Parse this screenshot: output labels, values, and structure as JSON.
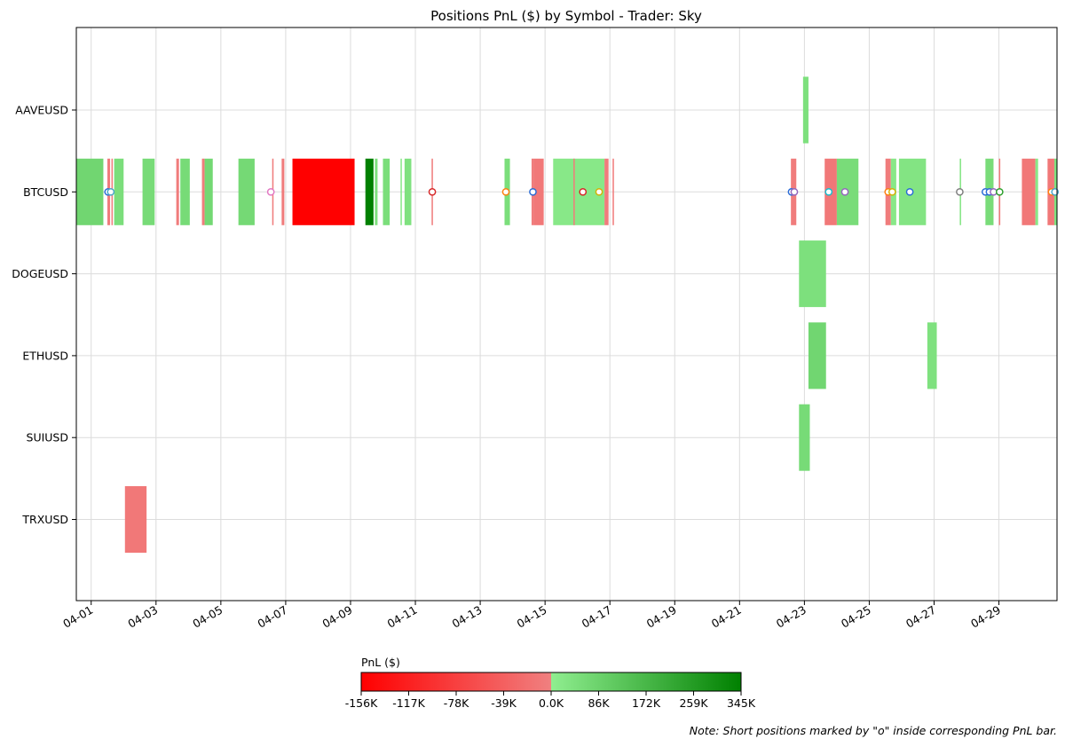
{
  "chart_data": {
    "type": "timeline",
    "title": "Positions PnL ($) by Symbol - Trader: Sky",
    "note": "Note: Short positions marked by \"o\" inside corresponding PnL bar.",
    "x_domain": [
      "2025-03-31T13:00",
      "2025-04-30T19:00"
    ],
    "x_ticks": [
      "04-01",
      "04-03",
      "04-05",
      "04-07",
      "04-09",
      "04-11",
      "04-13",
      "04-15",
      "04-17",
      "04-19",
      "04-21",
      "04-23",
      "04-25",
      "04-27",
      "04-29"
    ],
    "grid": true,
    "symbols": [
      "AAVEUSD",
      "BTCUSD",
      "DOGEUSD",
      "ETHUSD",
      "SUIUSD",
      "TRXUSD"
    ],
    "colorbar": {
      "label": "PnL ($)",
      "ticks": [
        "-156K",
        "-117K",
        "-78K",
        "-39K",
        "0.0K",
        "86K",
        "172K",
        "259K",
        "345K"
      ],
      "min": -156,
      "max": 345,
      "neg_colors": [
        "#ff0000",
        "#f08080"
      ],
      "pos_colors": [
        "#90ee90",
        "#008000"
      ]
    },
    "positions": [
      {
        "symbol": "AAVEUSD",
        "start": "2025-04-22T23:00",
        "end": "2025-04-23T03:00",
        "pnl_k": 45
      },
      {
        "symbol": "BTCUSD",
        "start": "2025-03-31T13:00",
        "end": "2025-04-01T09:00",
        "pnl_k": 75
      },
      {
        "symbol": "BTCUSD",
        "start": "2025-04-01T12:00",
        "end": "2025-04-01T14:00",
        "pnl_k": -5
      },
      {
        "symbol": "BTCUSD",
        "start": "2025-04-01T15:00",
        "end": "2025-04-01T16:00",
        "pnl_k": -5
      },
      {
        "symbol": "BTCUSD",
        "start": "2025-04-01T17:00",
        "end": "2025-04-02T00:00",
        "pnl_k": 50
      },
      {
        "symbol": "BTCUSD",
        "start": "2025-04-02T14:00",
        "end": "2025-04-02T23:00",
        "pnl_k": 60
      },
      {
        "symbol": "BTCUSD",
        "start": "2025-04-03T15:00",
        "end": "2025-04-03T17:00",
        "pnl_k": -5
      },
      {
        "symbol": "BTCUSD",
        "start": "2025-04-03T18:00",
        "end": "2025-04-04T01:00",
        "pnl_k": 60
      },
      {
        "symbol": "BTCUSD",
        "start": "2025-04-04T10:00",
        "end": "2025-04-04T12:00",
        "pnl_k": -5
      },
      {
        "symbol": "BTCUSD",
        "start": "2025-04-04T12:00",
        "end": "2025-04-04T18:00",
        "pnl_k": 70
      },
      {
        "symbol": "BTCUSD",
        "start": "2025-04-05T13:00",
        "end": "2025-04-06T01:00",
        "pnl_k": 65
      },
      {
        "symbol": "BTCUSD",
        "start": "2025-04-06T14:00",
        "end": "2025-04-06T15:00",
        "pnl_k": -5
      },
      {
        "symbol": "BTCUSD",
        "start": "2025-04-06T21:00",
        "end": "2025-04-06T23:00",
        "pnl_k": -5
      },
      {
        "symbol": "BTCUSD",
        "start": "2025-04-07T05:00",
        "end": "2025-04-09T03:00",
        "pnl_k": -156
      },
      {
        "symbol": "BTCUSD",
        "start": "2025-04-09T11:00",
        "end": "2025-04-09T17:00",
        "pnl_k": 345
      },
      {
        "symbol": "BTCUSD",
        "start": "2025-04-09T18:00",
        "end": "2025-04-09T20:00",
        "pnl_k": 40
      },
      {
        "symbol": "BTCUSD",
        "start": "2025-04-10T00:00",
        "end": "2025-04-10T05:00",
        "pnl_k": 50
      },
      {
        "symbol": "BTCUSD",
        "start": "2025-04-10T13:00",
        "end": "2025-04-10T14:00",
        "pnl_k": 20
      },
      {
        "symbol": "BTCUSD",
        "start": "2025-04-10T16:00",
        "end": "2025-04-10T21:00",
        "pnl_k": 40
      },
      {
        "symbol": "BTCUSD",
        "start": "2025-04-11T12:00",
        "end": "2025-04-11T13:00",
        "pnl_k": -5
      },
      {
        "symbol": "BTCUSD",
        "start": "2025-04-13T18:00",
        "end": "2025-04-13T22:00",
        "pnl_k": 50
      },
      {
        "symbol": "BTCUSD",
        "start": "2025-04-14T14:00",
        "end": "2025-04-14T16:00",
        "pnl_k": -5
      },
      {
        "symbol": "BTCUSD",
        "start": "2025-04-14T16:00",
        "end": "2025-04-14T23:00",
        "pnl_k": -10
      },
      {
        "symbol": "BTCUSD",
        "start": "2025-04-15T06:00",
        "end": "2025-04-16T20:00",
        "pnl_k": 20
      },
      {
        "symbol": "BTCUSD",
        "start": "2025-04-15T21:00",
        "end": "2025-04-15T22:00",
        "pnl_k": -5
      },
      {
        "symbol": "BTCUSD",
        "start": "2025-04-16T20:00",
        "end": "2025-04-16T23:00",
        "pnl_k": -5
      },
      {
        "symbol": "BTCUSD",
        "start": "2025-04-17T02:00",
        "end": "2025-04-17T03:00",
        "pnl_k": -5
      },
      {
        "symbol": "BTCUSD",
        "start": "2025-04-22T14:00",
        "end": "2025-04-22T18:00",
        "pnl_k": -5
      },
      {
        "symbol": "BTCUSD",
        "start": "2025-04-23T15:00",
        "end": "2025-04-24T00:00",
        "pnl_k": -10
      },
      {
        "symbol": "BTCUSD",
        "start": "2025-04-24T00:00",
        "end": "2025-04-24T16:00",
        "pnl_k": 55
      },
      {
        "symbol": "BTCUSD",
        "start": "2025-04-25T12:00",
        "end": "2025-04-25T16:00",
        "pnl_k": -5
      },
      {
        "symbol": "BTCUSD",
        "start": "2025-04-25T16:00",
        "end": "2025-04-25T20:00",
        "pnl_k": 20
      },
      {
        "symbol": "BTCUSD",
        "start": "2025-04-25T22:00",
        "end": "2025-04-26T18:00",
        "pnl_k": 30
      },
      {
        "symbol": "BTCUSD",
        "start": "2025-04-27T19:00",
        "end": "2025-04-27T20:00",
        "pnl_k": 30
      },
      {
        "symbol": "BTCUSD",
        "start": "2025-04-28T14:00",
        "end": "2025-04-28T20:00",
        "pnl_k": 55
      },
      {
        "symbol": "BTCUSD",
        "start": "2025-04-29T00:00",
        "end": "2025-04-29T01:00",
        "pnl_k": -5
      },
      {
        "symbol": "BTCUSD",
        "start": "2025-04-29T17:00",
        "end": "2025-04-30T03:00",
        "pnl_k": -10
      },
      {
        "symbol": "BTCUSD",
        "start": "2025-04-30T03:00",
        "end": "2025-04-30T05:00",
        "pnl_k": 20
      },
      {
        "symbol": "BTCUSD",
        "start": "2025-04-30T12:00",
        "end": "2025-04-30T17:00",
        "pnl_k": -10
      },
      {
        "symbol": "BTCUSD",
        "start": "2025-04-30T17:00",
        "end": "2025-04-30T19:00",
        "pnl_k": 40
      },
      {
        "symbol": "DOGEUSD",
        "start": "2025-04-22T20:00",
        "end": "2025-04-23T16:00",
        "pnl_k": 45
      },
      {
        "symbol": "ETHUSD",
        "start": "2025-04-23T03:00",
        "end": "2025-04-23T16:00",
        "pnl_k": 75
      },
      {
        "symbol": "ETHUSD",
        "start": "2025-04-26T19:00",
        "end": "2025-04-27T02:00",
        "pnl_k": 40
      },
      {
        "symbol": "SUIUSD",
        "start": "2025-04-22T20:00",
        "end": "2025-04-23T04:00",
        "pnl_k": 60
      },
      {
        "symbol": "TRXUSD",
        "start": "2025-04-02T01:00",
        "end": "2025-04-02T17:00",
        "pnl_k": -10
      }
    ],
    "short_markers": [
      {
        "symbol": "BTCUSD",
        "time": "2025-04-01T12:30",
        "color": "#2b6cd6"
      },
      {
        "symbol": "BTCUSD",
        "time": "2025-04-01T14:30",
        "color": "#4aa6c9"
      },
      {
        "symbol": "BTCUSD",
        "time": "2025-04-06T13:00",
        "color": "#e377c2"
      },
      {
        "symbol": "BTCUSD",
        "time": "2025-04-11T12:30",
        "color": "#d62728"
      },
      {
        "symbol": "BTCUSD",
        "time": "2025-04-13T19:00",
        "color": "#ff7f0e"
      },
      {
        "symbol": "BTCUSD",
        "time": "2025-04-14T15:00",
        "color": "#2b6cd6"
      },
      {
        "symbol": "BTCUSD",
        "time": "2025-04-16T04:00",
        "color": "#d62728"
      },
      {
        "symbol": "BTCUSD",
        "time": "2025-04-16T16:00",
        "color": "#d4b106"
      },
      {
        "symbol": "BTCUSD",
        "time": "2025-04-22T14:30",
        "color": "#2b6cd6"
      },
      {
        "symbol": "BTCUSD",
        "time": "2025-04-22T16:30",
        "color": "#9467bd"
      },
      {
        "symbol": "BTCUSD",
        "time": "2025-04-23T18:00",
        "color": "#17becf"
      },
      {
        "symbol": "BTCUSD",
        "time": "2025-04-24T06:00",
        "color": "#9467bd"
      },
      {
        "symbol": "BTCUSD",
        "time": "2025-04-25T14:00",
        "color": "#ff7f0e"
      },
      {
        "symbol": "BTCUSD",
        "time": "2025-04-25T17:00",
        "color": "#d4b106"
      },
      {
        "symbol": "BTCUSD",
        "time": "2025-04-26T06:00",
        "color": "#2b6cd6"
      },
      {
        "symbol": "BTCUSD",
        "time": "2025-04-27T19:00",
        "color": "#7f7f7f"
      },
      {
        "symbol": "BTCUSD",
        "time": "2025-04-28T14:00",
        "color": "#2b6cd6"
      },
      {
        "symbol": "BTCUSD",
        "time": "2025-04-28T17:00",
        "color": "#2b6cd6"
      },
      {
        "symbol": "BTCUSD",
        "time": "2025-04-28T20:00",
        "color": "#9467bd"
      },
      {
        "symbol": "BTCUSD",
        "time": "2025-04-29T00:30",
        "color": "#2ca02c"
      },
      {
        "symbol": "BTCUSD",
        "time": "2025-04-30T15:00",
        "color": "#ff7f0e"
      },
      {
        "symbol": "BTCUSD",
        "time": "2025-04-30T17:30",
        "color": "#4aa6c9"
      }
    ]
  }
}
